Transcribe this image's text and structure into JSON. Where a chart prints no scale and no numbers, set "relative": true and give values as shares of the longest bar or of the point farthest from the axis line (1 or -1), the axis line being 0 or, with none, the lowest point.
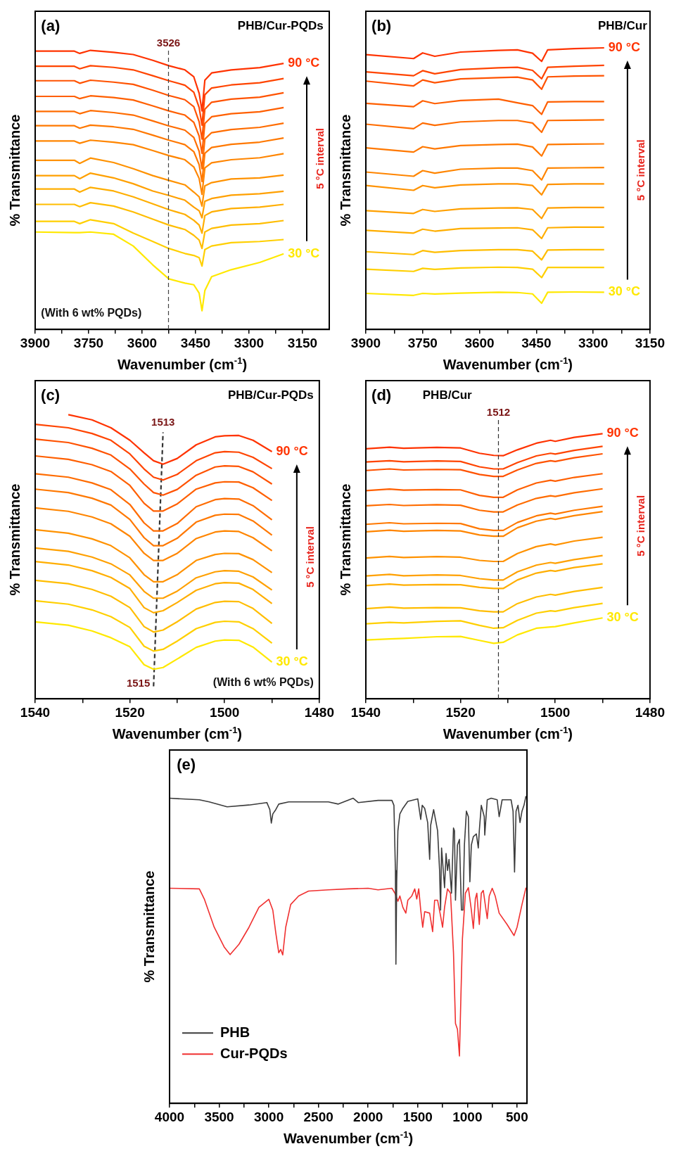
{
  "chart_data": [
    {
      "type": "line",
      "title": "(a)",
      "subtitle": "PHB/Cur-PQDs",
      "xlabel": "Wavenumber (cm$^{-1}$)",
      "ylabel": "% Transmittance",
      "relative": true,
      "legend": false,
      "marker": "none",
      "xlim": [
        3900,
        3075
      ],
      "xticks": [
        3900,
        {
          "value": 3825,
          "label": null
        },
        3750,
        {
          "value": 3675,
          "label": null
        },
        3600,
        {
          "value": 3525,
          "label": null
        },
        3450,
        {
          "value": 3375,
          "label": null
        },
        3300,
        {
          "value": 3225,
          "label": null
        },
        3150
      ],
      "x": [
        3900,
        3790,
        3775,
        3745,
        3680,
        3625,
        3570,
        3525,
        3480,
        3455,
        3440,
        3432,
        3424,
        3405,
        3350,
        3270,
        3203
      ],
      "ref_lines": [
        {
          "axis": "x",
          "value": 3526,
          "label": "3526",
          "color": "#444444",
          "line_style": "dashed"
        }
      ],
      "annotations": [
        "(With 6 wt% PQDs)",
        "5 °C interval"
      ],
      "series": [
        {
          "name": "90 °C",
          "color": "#ff3300",
          "values": [
            0.997,
            0.997,
            0.989,
            1.0,
            0.993,
            0.985,
            0.964,
            0.945,
            0.93,
            0.905,
            0.846,
            0.783,
            0.893,
            0.919,
            0.93,
            0.938,
            0.953
          ]
        },
        {
          "color": "#ff4400",
          "values": [
            0.943,
            0.943,
            0.934,
            0.945,
            0.939,
            0.93,
            0.909,
            0.891,
            0.875,
            0.85,
            0.795,
            0.732,
            0.841,
            0.865,
            0.876,
            0.884,
            0.899
          ]
        },
        {
          "color": "#ff5200",
          "values": [
            0.891,
            0.891,
            0.882,
            0.893,
            0.886,
            0.878,
            0.857,
            0.838,
            0.823,
            0.798,
            0.744,
            0.682,
            0.789,
            0.814,
            0.825,
            0.832,
            0.848
          ]
        },
        {
          "color": "#ff5f00",
          "values": [
            0.835,
            0.835,
            0.827,
            0.837,
            0.831,
            0.822,
            0.801,
            0.783,
            0.768,
            0.742,
            0.693,
            0.631,
            0.738,
            0.762,
            0.773,
            0.78,
            0.795
          ]
        },
        {
          "color": "#ff6c00",
          "values": [
            0.781,
            0.781,
            0.773,
            0.784,
            0.777,
            0.768,
            0.747,
            0.729,
            0.714,
            0.688,
            0.638,
            0.576,
            0.682,
            0.705,
            0.716,
            0.724,
            0.739
          ]
        },
        {
          "color": "#ff7800",
          "values": [
            0.73,
            0.73,
            0.721,
            0.732,
            0.726,
            0.717,
            0.696,
            0.678,
            0.662,
            0.637,
            0.59,
            0.53,
            0.631,
            0.652,
            0.663,
            0.671,
            0.686
          ]
        },
        {
          "color": "#ff8500",
          "values": [
            0.675,
            0.675,
            0.667,
            0.678,
            0.671,
            0.662,
            0.641,
            0.623,
            0.608,
            0.582,
            0.541,
            0.484,
            0.579,
            0.597,
            0.608,
            0.615,
            0.63
          ]
        },
        {
          "color": "#ff9200",
          "values": [
            0.606,
            0.606,
            0.595,
            0.614,
            0.598,
            0.576,
            0.551,
            0.534,
            0.518,
            0.492,
            0.475,
            0.442,
            0.514,
            0.526,
            0.539,
            0.543,
            0.553
          ]
        },
        {
          "color": "#ffa000",
          "values": [
            0.551,
            0.551,
            0.54,
            0.56,
            0.543,
            0.522,
            0.496,
            0.48,
            0.463,
            0.438,
            0.425,
            0.4,
            0.459,
            0.469,
            0.481,
            0.486,
            0.495
          ]
        },
        {
          "color": "#ffae00",
          "values": [
            0.503,
            0.503,
            0.492,
            0.509,
            0.496,
            0.475,
            0.45,
            0.429,
            0.412,
            0.391,
            0.374,
            0.345,
            0.408,
            0.421,
            0.433,
            0.438,
            0.448
          ]
        },
        {
          "color": "#ffbd00",
          "values": [
            0.448,
            0.448,
            0.44,
            0.454,
            0.442,
            0.421,
            0.395,
            0.374,
            0.358,
            0.337,
            0.32,
            0.29,
            0.349,
            0.362,
            0.374,
            0.379,
            0.39
          ]
        },
        {
          "color": "#ffcf00",
          "values": [
            0.387,
            0.387,
            0.379,
            0.393,
            0.379,
            0.345,
            0.315,
            0.29,
            0.272,
            0.265,
            0.257,
            0.227,
            0.286,
            0.299,
            0.311,
            0.315,
            0.322
          ]
        },
        {
          "name": "30 °C",
          "color": "#ffe800",
          "values": [
            0.349,
            0.347,
            0.347,
            0.349,
            0.341,
            0.299,
            0.231,
            0.181,
            0.166,
            0.16,
            0.13,
            0.067,
            0.139,
            0.189,
            0.214,
            0.24,
            0.271
          ]
        }
      ]
    },
    {
      "type": "line",
      "title": "(b)",
      "subtitle": "PHB/Cur",
      "xlabel": "Wavenumber (cm$^{-1}$)",
      "ylabel": "% Transmittance",
      "relative": true,
      "legend": false,
      "marker": "none",
      "xlim": [
        3900,
        3150
      ],
      "xticks": [
        3900,
        {
          "value": 3825,
          "label": null
        },
        3750,
        {
          "value": 3675,
          "label": null
        },
        3600,
        {
          "value": 3525,
          "label": null
        },
        3450,
        {
          "value": 3375,
          "label": null
        },
        3300,
        {
          "value": 3225,
          "label": null
        },
        3150
      ],
      "x": [
        3900,
        3774,
        3750,
        3718,
        3650,
        3550,
        3500,
        3460,
        3436,
        3420,
        3350,
        3271
      ],
      "annotations": [
        "5 °C interval"
      ],
      "series": [
        {
          "name": "90 °C",
          "color": "#ff3300",
          "values": [
            0.976,
            0.962,
            0.982,
            0.97,
            0.985,
            0.991,
            0.993,
            0.981,
            0.952,
            0.993,
            0.997,
            1.0
          ]
        },
        {
          "color": "#ff4400",
          "values": [
            0.915,
            0.901,
            0.919,
            0.908,
            0.923,
            0.929,
            0.931,
            0.92,
            0.89,
            0.931,
            0.935,
            0.938
          ]
        },
        {
          "color": "#ff5200",
          "values": [
            0.882,
            0.865,
            0.886,
            0.876,
            0.89,
            0.894,
            0.896,
            0.886,
            0.853,
            0.897,
            0.9,
            0.901
          ]
        },
        {
          "color": "#ff5f00",
          "values": [
            0.803,
            0.791,
            0.812,
            0.802,
            0.813,
            0.818,
            0.805,
            0.795,
            0.764,
            0.808,
            0.809,
            0.809
          ]
        },
        {
          "color": "#ff6c00",
          "values": [
            0.729,
            0.713,
            0.733,
            0.725,
            0.737,
            0.742,
            0.742,
            0.733,
            0.7,
            0.742,
            0.743,
            0.744
          ]
        },
        {
          "color": "#ff7800",
          "values": [
            0.645,
            0.63,
            0.649,
            0.641,
            0.653,
            0.657,
            0.658,
            0.648,
            0.616,
            0.657,
            0.658,
            0.659
          ]
        },
        {
          "color": "#ff8500",
          "values": [
            0.559,
            0.544,
            0.564,
            0.555,
            0.569,
            0.573,
            0.573,
            0.564,
            0.531,
            0.573,
            0.574,
            0.575
          ]
        },
        {
          "color": "#ff9200",
          "values": [
            0.511,
            0.494,
            0.511,
            0.503,
            0.513,
            0.517,
            0.517,
            0.511,
            0.478,
            0.515,
            0.517,
            0.517
          ]
        },
        {
          "color": "#ffa000",
          "values": [
            0.422,
            0.412,
            0.426,
            0.419,
            0.428,
            0.431,
            0.432,
            0.426,
            0.394,
            0.431,
            0.433,
            0.433
          ]
        },
        {
          "color": "#ffae00",
          "values": [
            0.352,
            0.342,
            0.356,
            0.349,
            0.358,
            0.36,
            0.361,
            0.354,
            0.323,
            0.361,
            0.363,
            0.363
          ]
        },
        {
          "color": "#ffbd00",
          "values": [
            0.276,
            0.266,
            0.28,
            0.274,
            0.28,
            0.283,
            0.283,
            0.278,
            0.247,
            0.282,
            0.283,
            0.283
          ]
        },
        {
          "color": "#ffcf00",
          "values": [
            0.214,
            0.206,
            0.217,
            0.213,
            0.218,
            0.221,
            0.22,
            0.214,
            0.184,
            0.22,
            0.22,
            0.22
          ]
        },
        {
          "name": "30 °C",
          "color": "#ffe800",
          "values": [
            0.128,
            0.121,
            0.128,
            0.126,
            0.129,
            0.132,
            0.131,
            0.126,
            0.093,
            0.132,
            0.133,
            0.132
          ]
        }
      ]
    },
    {
      "type": "line",
      "title": "(c)",
      "subtitle": "PHB/Cur-PQDs",
      "xlabel": "Wavenumber (cm$^{-1}$)",
      "ylabel": "% Transmittance",
      "relative": true,
      "legend": false,
      "marker": "none",
      "xlim": [
        1540,
        1480
      ],
      "xticks": [
        1540,
        {
          "value": 1530,
          "label": null
        },
        1520,
        {
          "value": 1510,
          "label": null
        },
        1500,
        {
          "value": 1490,
          "label": null
        },
        1480
      ],
      "x": [
        1540,
        1533,
        1528,
        1524,
        1520,
        1517,
        1515,
        1513,
        1510,
        1506,
        1502,
        1500,
        1497,
        1494,
        1490
      ],
      "annotations": [
        {
          "text": "1513",
          "x": 1513,
          "y": 0.938
        },
        {
          "text": "1515",
          "x": 1515,
          "y": 0.044
        },
        "5 °C interval",
        "(With 6 wt% PQDs)"
      ],
      "series": [
        {
          "name": "90 °C",
          "color": "#ff3300",
          "values": [
            null,
            1.0,
            0.982,
            0.954,
            0.91,
            0.866,
            0.838,
            0.826,
            0.846,
            0.894,
            0.922,
            0.926,
            0.927,
            0.91,
            0.87
          ]
        },
        {
          "color": "#ff4400",
          "values": [
            0.966,
            0.954,
            0.934,
            0.91,
            0.862,
            0.809,
            0.78,
            0.77,
            0.79,
            0.838,
            0.866,
            0.87,
            0.868,
            0.85,
            0.81
          ]
        },
        {
          "color": "#ff5200",
          "values": [
            0.914,
            0.902,
            0.882,
            0.858,
            0.809,
            0.756,
            0.726,
            0.717,
            0.737,
            0.787,
            0.816,
            0.82,
            0.818,
            0.799,
            0.756
          ]
        },
        {
          "color": "#ff5f00",
          "values": [
            0.855,
            0.843,
            0.824,
            0.8,
            0.751,
            0.688,
            0.661,
            0.661,
            0.686,
            0.738,
            0.76,
            0.764,
            0.763,
            0.743,
            0.698
          ]
        },
        {
          "color": "#ff6c00",
          "values": [
            0.792,
            0.78,
            0.76,
            0.736,
            0.684,
            0.619,
            0.591,
            0.591,
            0.617,
            0.676,
            0.701,
            0.705,
            0.703,
            0.68,
            0.63
          ]
        },
        {
          "color": "#ff7800",
          "values": [
            0.738,
            0.726,
            0.706,
            0.682,
            0.631,
            0.567,
            0.539,
            0.539,
            0.565,
            0.622,
            0.646,
            0.65,
            0.649,
            0.626,
            0.576
          ]
        },
        {
          "color": "#ff8500",
          "values": [
            0.672,
            0.66,
            0.64,
            0.616,
            0.572,
            0.512,
            0.487,
            0.487,
            0.512,
            0.564,
            0.587,
            0.591,
            0.589,
            0.567,
            0.521
          ]
        },
        {
          "color": "#ff9200",
          "values": [
            0.595,
            0.583,
            0.563,
            0.539,
            0.496,
            0.437,
            0.412,
            0.412,
            0.437,
            0.487,
            0.508,
            0.512,
            0.511,
            0.49,
            0.444
          ]
        },
        {
          "color": "#ffa000",
          "values": [
            0.531,
            0.519,
            0.499,
            0.475,
            0.436,
            0.378,
            0.354,
            0.354,
            0.379,
            0.426,
            0.447,
            0.451,
            0.449,
            0.429,
            0.383
          ]
        },
        {
          "color": "#ffae00",
          "values": [
            0.483,
            0.471,
            0.451,
            0.427,
            0.388,
            0.321,
            0.303,
            0.31,
            0.339,
            0.382,
            0.405,
            0.409,
            0.407,
            0.385,
            0.335
          ]
        },
        {
          "color": "#ffbd00",
          "values": [
            0.417,
            0.405,
            0.385,
            0.361,
            0.321,
            0.254,
            0.235,
            0.242,
            0.271,
            0.316,
            0.339,
            0.343,
            0.342,
            0.318,
            0.265
          ]
        },
        {
          "color": "#ffcf00",
          "values": [
            0.345,
            0.333,
            0.313,
            0.289,
            0.251,
            0.185,
            0.168,
            0.174,
            0.203,
            0.247,
            0.269,
            0.273,
            0.271,
            0.247,
            0.196
          ]
        },
        {
          "name": "30 °C",
          "color": "#ffe800",
          "values": [
            0.271,
            0.259,
            0.239,
            0.215,
            0.183,
            0.12,
            0.104,
            0.11,
            0.14,
            0.181,
            0.203,
            0.207,
            0.206,
            0.182,
            0.129
          ]
        },
        {
          "type": "line",
          "color": "#333333",
          "line_style": "dashed",
          "x": [
            1515,
            1513
          ],
          "values": [
            0.044,
            0.938
          ]
        }
      ]
    },
    {
      "type": "line",
      "title": "(d)",
      "subtitle": "PHB/Cur",
      "xlabel": "Wavenumber (cm$^{-1}$)",
      "ylabel": "% Transmittance",
      "relative": true,
      "legend": false,
      "marker": "none",
      "xlim": [
        1540,
        1480
      ],
      "xticks": [
        1540,
        {
          "value": 1530,
          "label": null
        },
        1520,
        {
          "value": 1510,
          "label": null
        },
        1500,
        {
          "value": 1490,
          "label": null
        },
        1480
      ],
      "x": [
        1540,
        1535,
        1532,
        1525,
        1520,
        1516,
        1513,
        1511,
        1508,
        1504,
        1501,
        1500,
        1496,
        1490
      ],
      "ref_lines": [
        {
          "axis": "x",
          "value": 1512,
          "label": "1512",
          "color": "#333333",
          "line_style": "dashed"
        }
      ],
      "annotations": [
        "5 °C interval"
      ],
      "series": [
        {
          "name": "90 °C",
          "color": "#ff3300",
          "values": [
            0.943,
            0.949,
            0.945,
            0.948,
            0.946,
            0.926,
            0.918,
            0.917,
            0.939,
            0.964,
            0.975,
            0.971,
            0.986,
            1.0
          ]
        },
        {
          "color": "#ff4400",
          "values": [
            0.893,
            0.898,
            0.894,
            0.897,
            0.895,
            0.875,
            0.867,
            0.867,
            0.891,
            0.916,
            0.926,
            0.923,
            0.937,
            0.952
          ]
        },
        {
          "color": "#ff5200",
          "values": [
            0.861,
            0.867,
            0.863,
            0.865,
            0.864,
            0.846,
            0.839,
            0.839,
            0.863,
            0.888,
            0.898,
            0.895,
            0.909,
            0.924
          ]
        },
        {
          "color": "#ff5f00",
          "values": [
            0.785,
            0.791,
            0.787,
            0.789,
            0.788,
            0.767,
            0.76,
            0.76,
            0.788,
            0.814,
            0.824,
            0.821,
            0.835,
            0.849
          ]
        },
        {
          "color": "#ff6c00",
          "values": [
            0.728,
            0.733,
            0.729,
            0.732,
            0.73,
            0.711,
            0.705,
            0.705,
            0.731,
            0.756,
            0.766,
            0.763,
            0.777,
            0.792
          ]
        },
        {
          "color": "#ff7800",
          "values": [
            0.658,
            0.664,
            0.66,
            0.662,
            0.661,
            0.641,
            0.635,
            0.635,
            0.665,
            0.69,
            0.7,
            0.697,
            0.711,
            0.726
          ]
        },
        {
          "color": "#ff8500",
          "values": [
            0.63,
            0.636,
            0.632,
            0.635,
            0.633,
            0.618,
            0.613,
            0.613,
            0.645,
            0.67,
            0.68,
            0.677,
            0.691,
            0.706
          ]
        },
        {
          "color": "#ff9200",
          "values": [
            0.531,
            0.537,
            0.533,
            0.536,
            0.534,
            0.522,
            0.518,
            0.518,
            0.548,
            0.574,
            0.584,
            0.58,
            0.595,
            0.609
          ]
        },
        {
          "color": "#ffa000",
          "values": [
            0.463,
            0.469,
            0.464,
            0.467,
            0.465,
            0.453,
            0.448,
            0.448,
            0.479,
            0.504,
            0.514,
            0.511,
            0.525,
            0.54
          ]
        },
        {
          "color": "#ffae00",
          "values": [
            0.427,
            0.433,
            0.429,
            0.431,
            0.43,
            0.42,
            0.416,
            0.416,
            0.448,
            0.474,
            0.484,
            0.481,
            0.495,
            0.509
          ]
        },
        {
          "color": "#ffbd00",
          "values": [
            0.34,
            0.346,
            0.342,
            0.344,
            0.343,
            0.332,
            0.328,
            0.328,
            0.359,
            0.384,
            0.394,
            0.391,
            0.405,
            0.42
          ]
        },
        {
          "color": "#ffcf00",
          "values": [
            0.283,
            0.288,
            0.286,
            0.292,
            0.294,
            0.277,
            0.266,
            0.268,
            0.296,
            0.323,
            0.332,
            0.33,
            0.344,
            0.36
          ]
        },
        {
          "name": "30 °C",
          "color": "#ffe800",
          "values": [
            0.222,
            0.226,
            0.228,
            0.234,
            0.235,
            0.22,
            0.209,
            0.213,
            0.241,
            0.266,
            0.271,
            0.272,
            0.286,
            0.305
          ]
        }
      ]
    },
    {
      "type": "line",
      "title": "(e)",
      "xlabel": "Wavenumber (cm$^{-1}$)",
      "ylabel": "% Transmittance",
      "relative": true,
      "legend": "bottom left",
      "marker": "none",
      "xlim": [
        4000,
        400
      ],
      "xticks": [
        4000,
        {
          "value": 3750,
          "label": null
        },
        3500,
        {
          "value": 3250,
          "label": null
        },
        3000,
        {
          "value": 2750,
          "label": null
        },
        2500,
        {
          "value": 2250,
          "label": null
        },
        2000,
        {
          "value": 1750,
          "label": null
        },
        1500,
        {
          "value": 1250,
          "label": null
        },
        1000,
        {
          "value": 750,
          "label": null
        },
        500
      ],
      "series": [
        {
          "name": "PHB",
          "color": "#3c3c3c",
          "x": [
            4000,
            3700,
            3600,
            3420,
            3200,
            3020,
            2990,
            2975,
            2960,
            2930,
            2900,
            2800,
            2400,
            2300,
            2150,
            2100,
            1900,
            1760,
            1740,
            1725,
            1720,
            1712,
            1700,
            1680,
            1650,
            1600,
            1500,
            1470,
            1455,
            1430,
            1400,
            1380,
            1370,
            1340,
            1300,
            1280,
            1270,
            1260,
            1230,
            1215,
            1200,
            1185,
            1160,
            1140,
            1130,
            1120,
            1100,
            1080,
            1060,
            1045,
            1030,
            1010,
            990,
            975,
            960,
            940,
            910,
            890,
            880,
            860,
            830,
            825,
            800,
            760,
            700,
            680,
            650,
            560,
            540,
            525,
            510,
            490,
            470,
            450,
            430,
            410
          ],
          "values": [
            0.993,
            0.988,
            0.981,
            0.965,
            0.971,
            0.979,
            0.956,
            0.912,
            0.942,
            0.956,
            0.974,
            0.981,
            0.981,
            0.974,
            0.993,
            0.979,
            0.986,
            0.986,
            0.97,
            0.758,
            0.453,
            0.721,
            0.887,
            0.942,
            0.96,
            0.983,
            0.991,
            0.924,
            0.97,
            0.96,
            0.914,
            0.794,
            0.905,
            0.956,
            0.887,
            0.758,
            0.629,
            0.831,
            0.702,
            0.813,
            0.758,
            0.794,
            0.684,
            0.896,
            0.887,
            0.661,
            0.841,
            0.859,
            0.629,
            0.629,
            0.841,
            0.951,
            0.933,
            0.721,
            0.841,
            0.868,
            0.877,
            0.831,
            0.887,
            0.97,
            0.933,
            0.873,
            0.988,
            0.993,
            0.988,
            0.933,
            0.988,
            0.988,
            0.951,
            0.753,
            0.951,
            0.97,
            0.914,
            0.951,
            0.97,
            1.0
          ]
        },
        {
          "name": "Cur-PQDs",
          "color": "#f03030",
          "x": [
            4000,
            3700,
            3650,
            3550,
            3450,
            3390,
            3300,
            3200,
            3100,
            3000,
            2960,
            2930,
            2900,
            2880,
            2860,
            2830,
            2780,
            2700,
            2600,
            2400,
            2200,
            2000,
            1900,
            1760,
            1730,
            1700,
            1680,
            1650,
            1620,
            1600,
            1560,
            1530,
            1510,
            1490,
            1470,
            1450,
            1430,
            1380,
            1350,
            1330,
            1300,
            1270,
            1250,
            1230,
            1200,
            1170,
            1140,
            1120,
            1100,
            1080,
            1065,
            1050,
            1020,
            990,
            960,
            940,
            920,
            905,
            880,
            860,
            840,
            800,
            780,
            750,
            720,
            680,
            600,
            530,
            500,
            450,
            410
          ],
          "values": [
            0.7,
            0.698,
            0.665,
            0.573,
            0.509,
            0.484,
            0.518,
            0.573,
            0.638,
            0.664,
            0.629,
            0.555,
            0.49,
            0.501,
            0.483,
            0.573,
            0.647,
            0.675,
            0.691,
            0.695,
            0.698,
            0.7,
            0.695,
            0.7,
            0.684,
            0.658,
            0.675,
            0.638,
            0.619,
            0.661,
            0.675,
            0.698,
            0.665,
            0.698,
            0.629,
            0.573,
            0.624,
            0.619,
            0.559,
            0.661,
            0.661,
            0.61,
            0.573,
            0.638,
            0.698,
            0.684,
            0.49,
            0.26,
            0.241,
            0.154,
            0.352,
            0.536,
            0.684,
            0.702,
            0.629,
            0.569,
            0.665,
            0.684,
            0.582,
            0.684,
            0.693,
            0.601,
            0.675,
            0.7,
            0.675,
            0.619,
            0.582,
            0.546,
            0.573,
            0.647,
            0.702
          ]
        }
      ]
    }
  ]
}
